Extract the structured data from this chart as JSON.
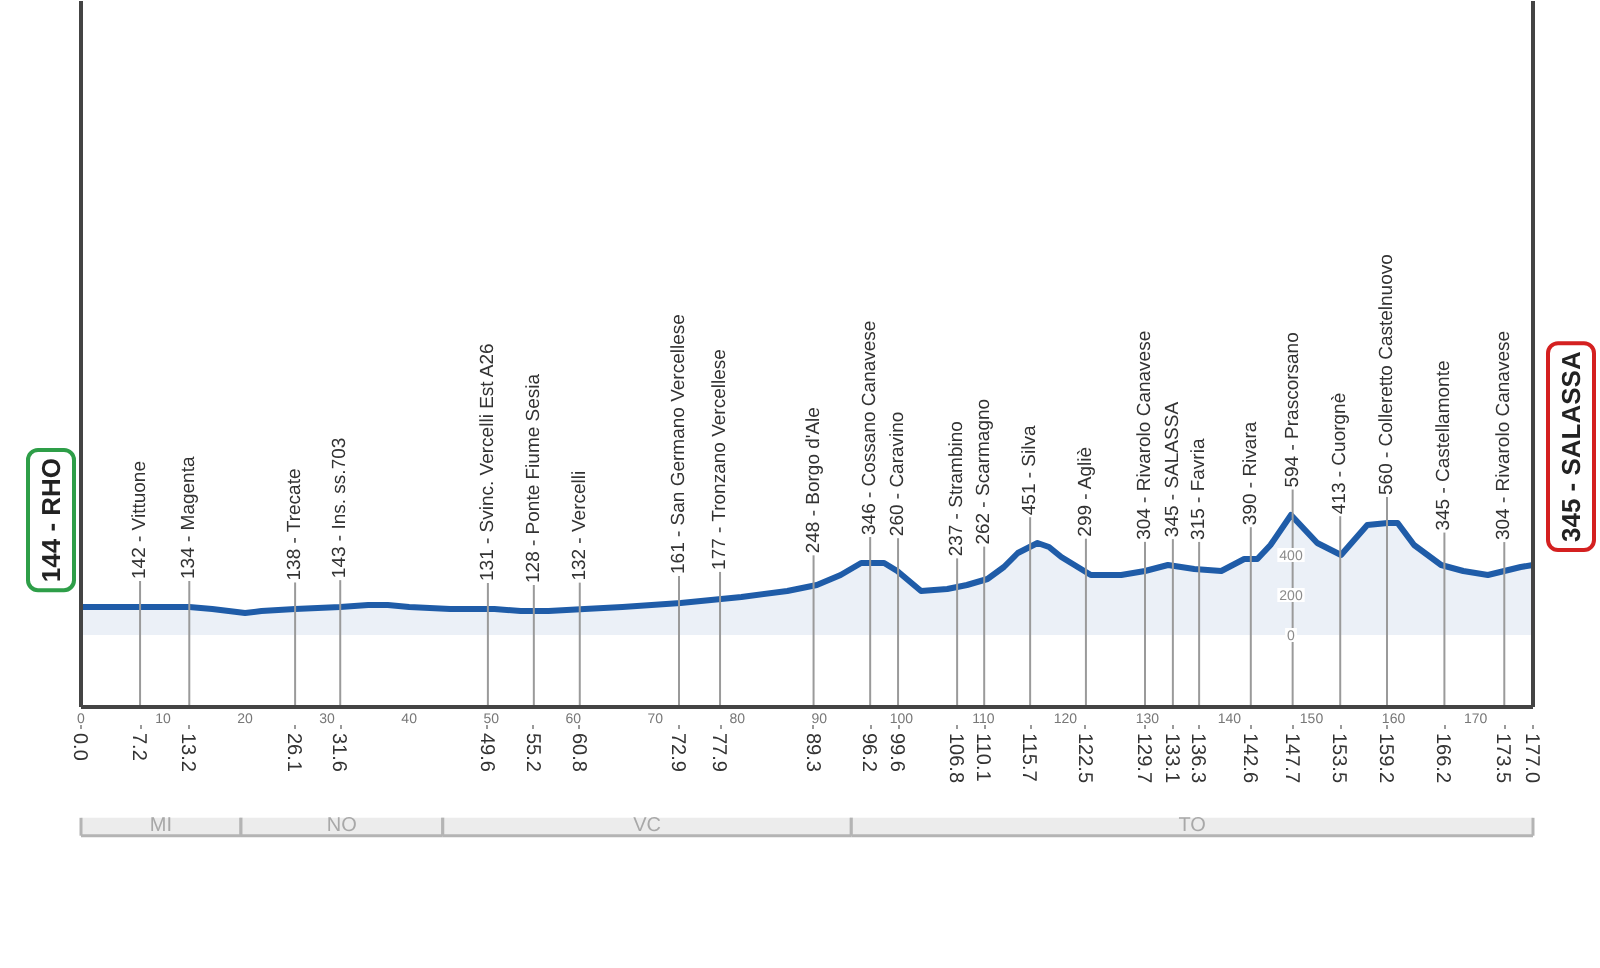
{
  "chart_data": [
    {
      "type": "area",
      "x": [
        0,
        3,
        7.2,
        13.2,
        16,
        18,
        20,
        22,
        26.1,
        31.6,
        35,
        37.4,
        40,
        45,
        50.4,
        53.6,
        57,
        61.4,
        66,
        73.1,
        80.5,
        86.1,
        89.7,
        92.6,
        95.1,
        97.9,
        99.5,
        102.4,
        105.6,
        108,
        110.5,
        112.5,
        114.2,
        116.6,
        118,
        119.5,
        120.3,
        123.1,
        126.8,
        129.7,
        132.5,
        135.7,
        139,
        141.8,
        143.4,
        145,
        147.5,
        150.7,
        153.6,
        156.8,
        159.3,
        160.5,
        162.5,
        165.8,
        168.5,
        171.5,
        175.5,
        177
      ],
      "series": [
        {
          "color": "#1f5ca8",
          "values": [
            140,
            140,
            140,
            140,
            130,
            120,
            110,
            120,
            130,
            140,
            150,
            150,
            140,
            130,
            130,
            120,
            120,
            130,
            140,
            160,
            190,
            220,
            250,
            300,
            360,
            360,
            320,
            220,
            230,
            250,
            280,
            340,
            410,
            460,
            440,
            390,
            370,
            300,
            300,
            320,
            350,
            330,
            320,
            380,
            380,
            450,
            600,
            460,
            400,
            550,
            560,
            560,
            450,
            350,
            320,
            300,
            340,
            350
          ]
        }
      ],
      "xlim": [
        0,
        177
      ],
      "xticks": [
        0,
        10,
        20,
        30,
        40,
        50,
        60,
        70,
        80,
        90,
        100,
        110,
        120,
        130,
        140,
        150,
        160,
        170
      ],
      "x2lim": [
        0,
        177
      ],
      "x2ticks": [
        {
          "value": 0,
          "label": "0.0"
        },
        7.2,
        13.2,
        26.1,
        31.6,
        49.6,
        55.2,
        60.8,
        72.9,
        77.9,
        89.3,
        96.2,
        99.6,
        106.8,
        110.1,
        115.7,
        122.5,
        129.7,
        133.1,
        136.3,
        142.6,
        147.7,
        153.5,
        159.2,
        166.2,
        173.5,
        {
          "value": 177,
          "label": "177.0"
        }
      ],
      "ylim": [
        -360,
        3170
      ],
      "yticks": [
        0,
        200,
        400
      ],
      "annotations": [
        {
          "text": "144 - RHO",
          "x": 0,
          "y": 144
        },
        {
          "text": "345 - SALASSA",
          "x": 177,
          "y": 345
        }
      ],
      "ref_lines": [
        {
          "axis": "x",
          "value": 7.2,
          "label": "142 - Vittuone",
          "color": "#9a9a9a"
        },
        {
          "axis": "x",
          "value": 13.2,
          "label": "134 - Magenta",
          "color": "#9a9a9a"
        },
        {
          "axis": "x",
          "value": 26.1,
          "label": "138 - Trecate",
          "color": "#9a9a9a"
        },
        {
          "axis": "x",
          "value": 31.6,
          "label": "143 - Ins. ss.703",
          "color": "#9a9a9a"
        },
        {
          "axis": "x",
          "value": 49.6,
          "label": "131 - Svinc. Vercelli Est A26",
          "color": "#9a9a9a"
        },
        {
          "axis": "x",
          "value": 55.2,
          "label": "128 - Ponte Fiume Sesia",
          "color": "#9a9a9a"
        },
        {
          "axis": "x",
          "value": 60.8,
          "label": "132 - Vercelli",
          "color": "#9a9a9a"
        },
        {
          "axis": "x",
          "value": 72.9,
          "label": "161 - San Germano Vercellese",
          "color": "#9a9a9a"
        },
        {
          "axis": "x",
          "value": 77.9,
          "label": "177 - Tronzano Vercellese",
          "color": "#9a9a9a"
        },
        {
          "axis": "x",
          "value": 89.3,
          "label": "248 - Borgo d'Ale",
          "color": "#9a9a9a"
        },
        {
          "axis": "x",
          "value": 96.2,
          "label": "346 - Cossano Canavese",
          "color": "#9a9a9a"
        },
        {
          "axis": "x",
          "value": 99.6,
          "label": "260 - Caravino",
          "color": "#9a9a9a"
        },
        {
          "axis": "x",
          "value": 106.8,
          "label": "237 - Strambino",
          "color": "#9a9a9a"
        },
        {
          "axis": "x",
          "value": 110.1,
          "label": "262 - Scarmagno",
          "color": "#9a9a9a"
        },
        {
          "axis": "x",
          "value": 115.7,
          "label": "451 - Silva",
          "color": "#9a9a9a"
        },
        {
          "axis": "x",
          "value": 122.5,
          "label": "299 - Agliè",
          "color": "#9a9a9a"
        },
        {
          "axis": "x",
          "value": 129.7,
          "label": "304 - Rivarolo Canavese",
          "color": "#9a9a9a"
        },
        {
          "axis": "x",
          "value": 133.1,
          "label": "345 - SALASSA",
          "color": "#9a9a9a"
        },
        {
          "axis": "x",
          "value": 136.3,
          "label": "315 - Favria",
          "color": "#9a9a9a"
        },
        {
          "axis": "x",
          "value": 142.6,
          "label": "390 - Rivara",
          "color": "#9a9a9a"
        },
        {
          "axis": "x",
          "value": 147.7,
          "label": "594 - Prascorsano",
          "color": "#9a9a9a"
        },
        {
          "axis": "x",
          "value": 153.5,
          "label": "413 - Cuorgnè",
          "color": "#9a9a9a"
        },
        {
          "axis": "x",
          "value": 159.2,
          "label": "560 - Colleretto Castelnuovo",
          "color": "#9a9a9a"
        },
        {
          "axis": "x",
          "value": 166.2,
          "label": "345 - Castellamonte",
          "color": "#9a9a9a"
        },
        {
          "axis": "x",
          "value": 173.5,
          "label": "304 - Rivarolo Canavese",
          "color": "#9a9a9a"
        }
      ]
    },
    {
      "type": "bar",
      "orientation": "horizontal",
      "stacked": true,
      "categories": [
        null
      ],
      "series": [
        {
          "name": "MI",
          "color": "#ececec",
          "values": [
            19.5
          ]
        },
        {
          "name": "NO",
          "color": "#ececec",
          "values": [
            24.6
          ]
        },
        {
          "name": "VC",
          "color": "#ececec",
          "values": [
            49.8
          ]
        },
        {
          "name": "TO",
          "color": "#ececec",
          "values": [
            83.1
          ]
        }
      ],
      "xlim": [
        0,
        177
      ],
      "tick_labels": false
    }
  ]
}
